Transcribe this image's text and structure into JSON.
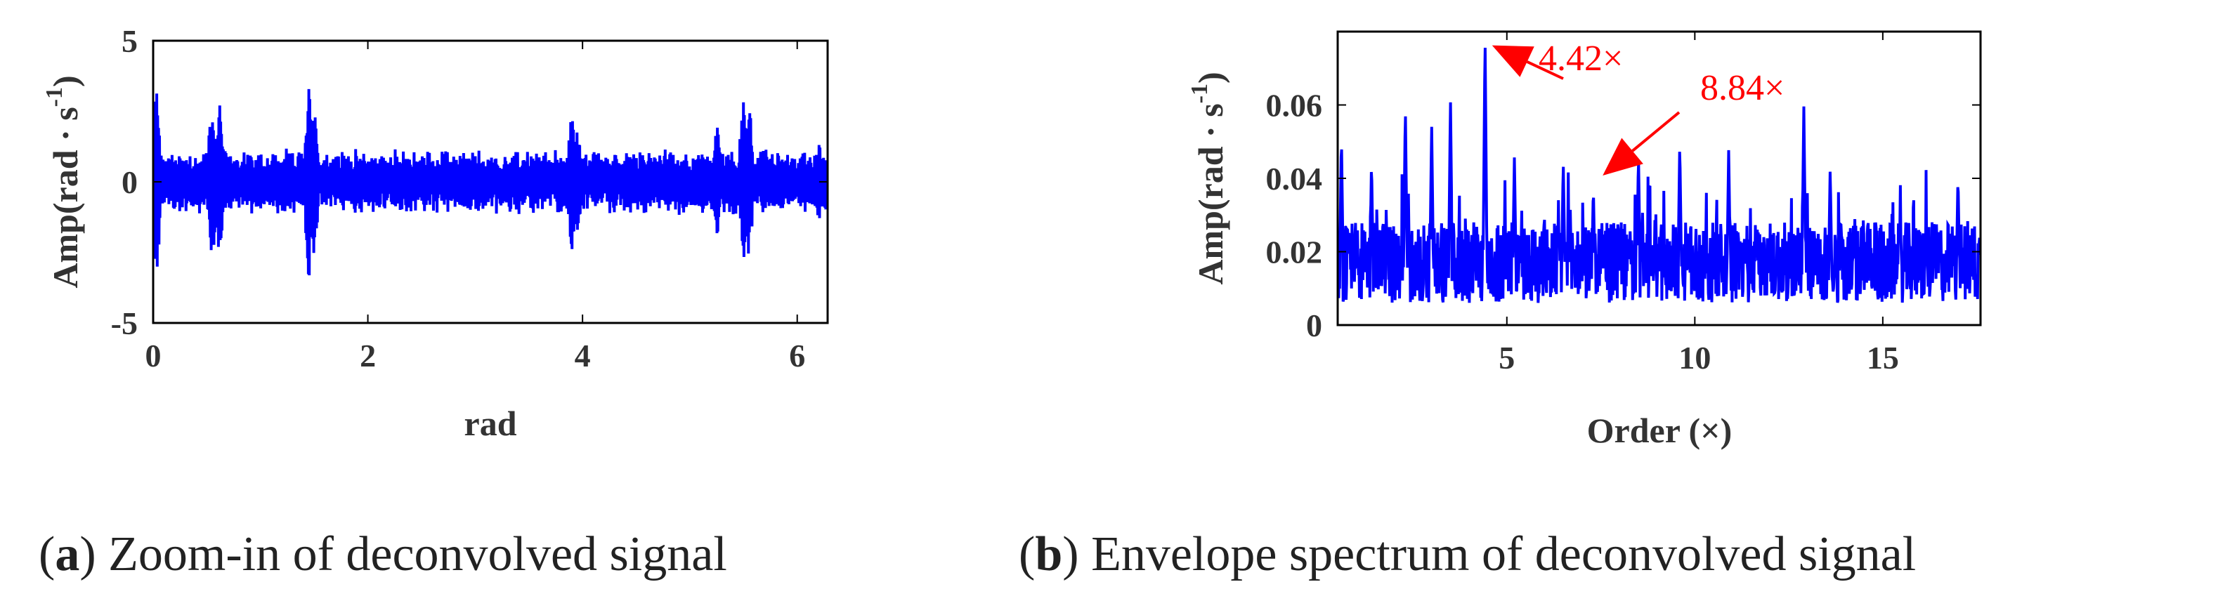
{
  "chart_data": [
    {
      "type": "line",
      "panel": "a",
      "xlabel": "rad",
      "ylabel": "Amp(rad · s",
      "ylabel_sup": "-1",
      "ylabel_end": ")",
      "xlim": [
        0,
        6.2832
      ],
      "ylim": [
        -5,
        5
      ],
      "xticks": [
        "0",
        "2",
        "4",
        "6"
      ],
      "xtick_values": [
        0,
        2,
        4,
        6
      ],
      "yticks": [
        "-5",
        "0",
        "5"
      ],
      "ytick_values": [
        -5,
        0,
        5
      ],
      "line_color": "#0000ff",
      "series": [
        {
          "n_points": 1500,
          "envelope_peaks": [
            {
              "x": 0.02,
              "y": 3.2
            },
            {
              "x": 0.03,
              "y": -3.6
            },
            {
              "x": 0.55,
              "y": 3.0
            },
            {
              "x": 0.62,
              "y": -2.8
            },
            {
              "x": 1.45,
              "y": 3.7
            },
            {
              "x": 1.5,
              "y": -3.0
            },
            {
              "x": 3.95,
              "y": 2.2
            },
            {
              "x": 3.9,
              "y": -2.6
            },
            {
              "x": 5.25,
              "y": 2.2
            },
            {
              "x": 5.55,
              "y": 3.0
            },
            {
              "x": 5.5,
              "y": -3.0
            },
            {
              "x": 6.2,
              "y": -1.5
            }
          ],
          "typical_amplitude": 1.2
        }
      ],
      "caption_key": "a",
      "caption_text": "Zoom-in of deconvolved signal"
    },
    {
      "type": "line",
      "panel": "b",
      "xlabel": "Order (×)",
      "ylabel": "Amp(rad · s",
      "ylabel_sup": "-1",
      "ylabel_end": ")",
      "xlim": [
        0.5,
        17.6
      ],
      "ylim": [
        0,
        0.08
      ],
      "xticks": [
        "5",
        "10",
        "15"
      ],
      "xtick_values": [
        5,
        10,
        15
      ],
      "yticks": [
        "0",
        "0.02",
        "0.04",
        "0.06"
      ],
      "ytick_values": [
        0,
        0.02,
        0.04,
        0.06
      ],
      "line_color": "#0000ff",
      "series": [
        {
          "n_points": 1300,
          "peaks": [
            {
              "x": 0.6,
              "y": 0.052
            },
            {
              "x": 1.4,
              "y": 0.045
            },
            {
              "x": 2.3,
              "y": 0.06
            },
            {
              "x": 3.0,
              "y": 0.055
            },
            {
              "x": 3.5,
              "y": 0.062
            },
            {
              "x": 4.42,
              "y": 0.079
            },
            {
              "x": 5.2,
              "y": 0.046
            },
            {
              "x": 6.5,
              "y": 0.045
            },
            {
              "x": 7.3,
              "y": 0.038
            },
            {
              "x": 8.5,
              "y": 0.047
            },
            {
              "x": 9.6,
              "y": 0.05
            },
            {
              "x": 10.9,
              "y": 0.048
            },
            {
              "x": 12.9,
              "y": 0.06
            },
            {
              "x": 13.6,
              "y": 0.043
            },
            {
              "x": 17.0,
              "y": 0.041
            }
          ],
          "baseline": 0.017
        }
      ],
      "annotations": [
        {
          "label": "4.42×",
          "x": 4.42,
          "y": 0.077
        },
        {
          "label": "8.84×",
          "x": 7.4,
          "y": 0.04
        }
      ],
      "caption_key": "b",
      "caption_text": "Envelope spectrum of deconvolved signal"
    }
  ]
}
